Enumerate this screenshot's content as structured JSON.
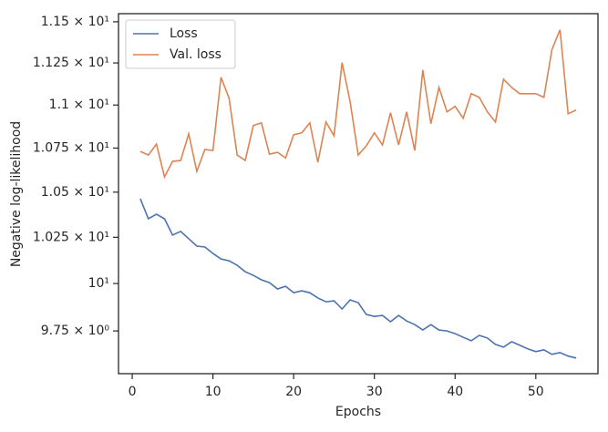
{
  "chart_data": {
    "type": "line",
    "xlabel": "Epochs",
    "ylabel": "Negative log-likelihood",
    "yscale": "log",
    "grid": false,
    "legend": "upper left",
    "x": [
      1,
      2,
      3,
      4,
      5,
      6,
      7,
      8,
      9,
      10,
      11,
      12,
      13,
      14,
      15,
      16,
      17,
      18,
      19,
      20,
      21,
      22,
      23,
      24,
      25,
      26,
      27,
      28,
      29,
      30,
      31,
      32,
      33,
      34,
      35,
      36,
      37,
      38,
      39,
      40,
      41,
      42,
      43,
      44,
      45,
      46,
      47,
      48,
      49,
      50,
      51,
      52,
      53,
      54,
      55
    ],
    "series": [
      {
        "name": "Loss",
        "color": "#4c72b0",
        "values": [
          10.463,
          10.352,
          10.377,
          10.352,
          10.262,
          10.282,
          10.242,
          10.202,
          10.197,
          10.162,
          10.132,
          10.122,
          10.098,
          10.063,
          10.044,
          10.02,
          10.005,
          9.971,
          9.985,
          9.951,
          9.961,
          9.951,
          9.923,
          9.903,
          9.908,
          9.865,
          9.913,
          9.898,
          9.836,
          9.826,
          9.831,
          9.798,
          9.831,
          9.802,
          9.783,
          9.755,
          9.783,
          9.755,
          9.75,
          9.736,
          9.717,
          9.699,
          9.727,
          9.713,
          9.68,
          9.666,
          9.694,
          9.676,
          9.657,
          9.643,
          9.652,
          9.629,
          9.638,
          9.62,
          9.61
        ]
      },
      {
        "name": "Val. loss",
        "color": "#dd8452",
        "values": [
          10.731,
          10.71,
          10.773,
          10.586,
          10.674,
          10.679,
          10.832,
          10.617,
          10.742,
          10.736,
          11.164,
          11.04,
          10.71,
          10.679,
          10.88,
          10.896,
          10.715,
          10.726,
          10.694,
          10.827,
          10.838,
          10.896,
          10.669,
          10.901,
          10.821,
          11.252,
          11.018,
          10.71,
          10.763,
          10.838,
          10.768,
          10.955,
          10.768,
          10.96,
          10.736,
          11.208,
          10.891,
          11.104,
          10.96,
          10.992,
          10.923,
          11.067,
          11.045,
          10.96,
          10.901,
          11.153,
          11.104,
          11.067,
          11.067,
          11.067,
          11.045,
          11.331,
          11.451,
          10.949,
          10.971
        ]
      }
    ],
    "xlim": [
      -1.7,
      57.7
    ],
    "xticks": [
      0,
      10,
      20,
      30,
      40,
      50
    ],
    "ylim": [
      9.53,
      11.55
    ],
    "yticks": [
      {
        "value": 9.75,
        "label": "9.75 × 10⁰"
      },
      {
        "value": 10,
        "label": "10¹"
      },
      {
        "value": 10.25,
        "label": "1.025 × 10¹"
      },
      {
        "value": 10.5,
        "label": "1.05 × 10¹"
      },
      {
        "value": 10.75,
        "label": "1.075 × 10¹"
      },
      {
        "value": 11,
        "label": "1.1 × 10¹"
      },
      {
        "value": 11.25,
        "label": "1.125 × 10¹"
      },
      {
        "value": 11.5,
        "label": "1.15 × 10¹"
      }
    ]
  }
}
